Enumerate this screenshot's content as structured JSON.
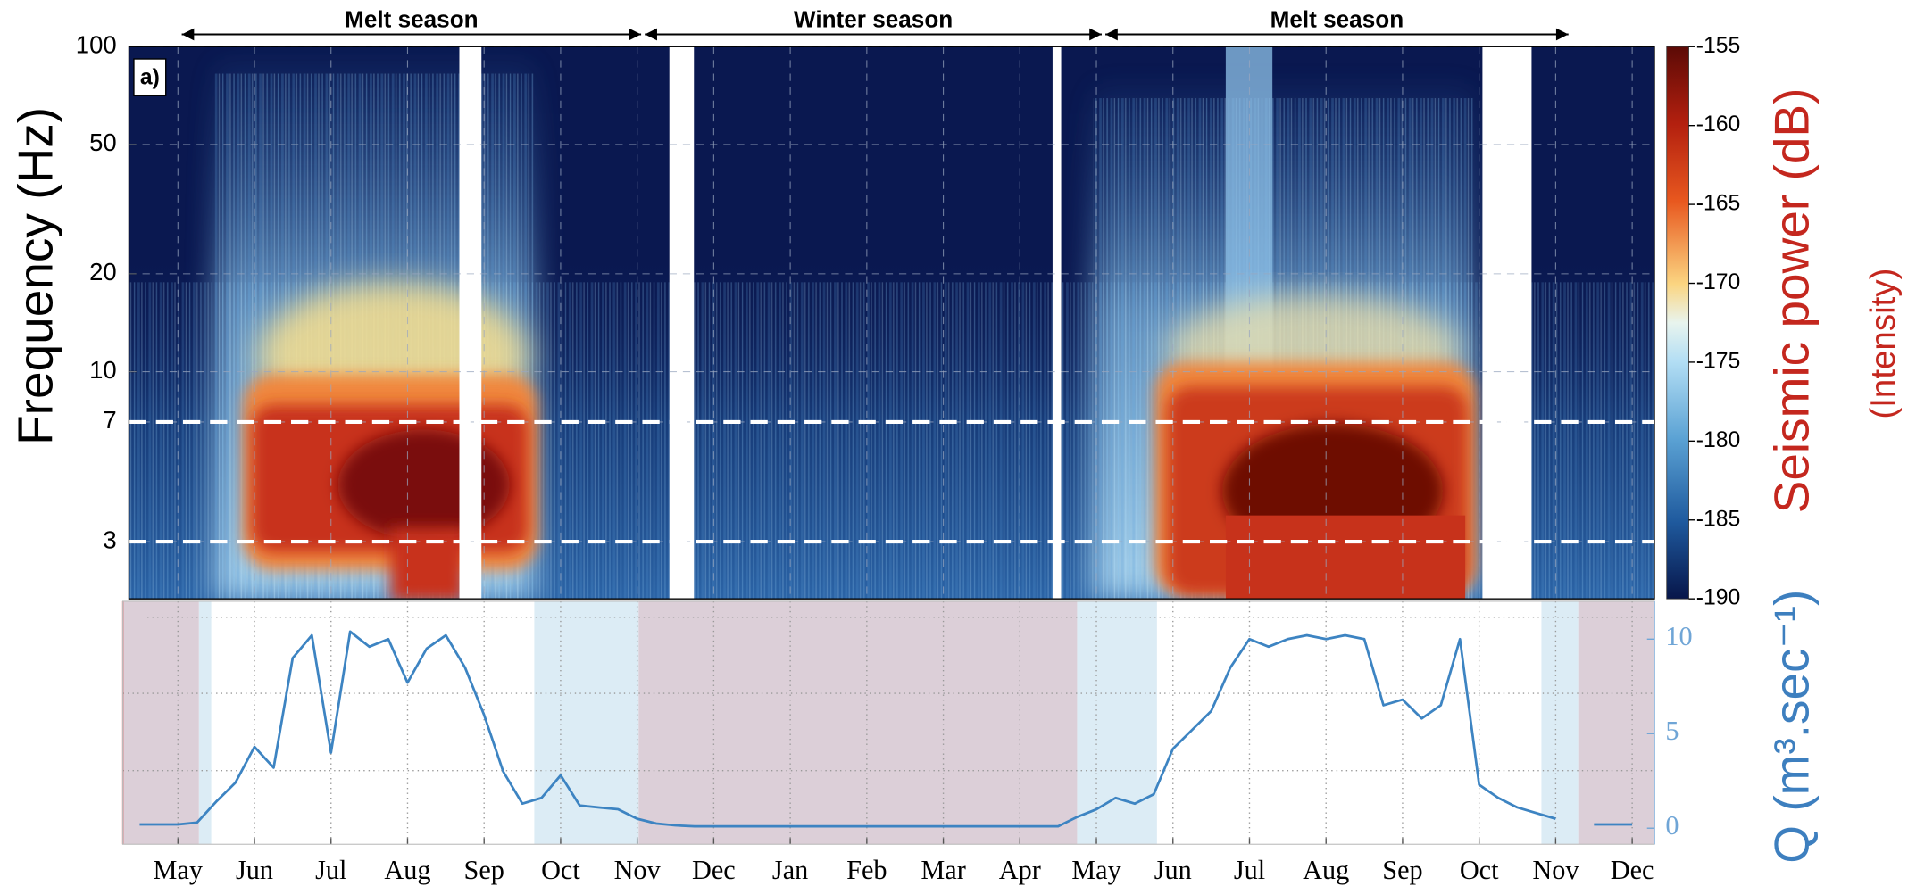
{
  "chart_data": [
    {
      "type": "spectrogram",
      "ylabel": "Frequency (Hz)",
      "panel_label": "a)",
      "seasons": [
        "Melt season",
        "Winter season",
        "Melt season"
      ],
      "ylim": [
        2,
        100
      ],
      "yscale": "log",
      "yticks": [
        100,
        50,
        20,
        10,
        7,
        3
      ],
      "marked_frequencies": [
        7,
        3
      ],
      "grid": true,
      "colorbar": {
        "label": "Seismic power (dB)",
        "sublabel": "(Intensity)",
        "lim": [
          -190,
          -155
        ],
        "ticks": [
          -155,
          -160,
          -165,
          -170,
          -175,
          -180,
          -185,
          -190
        ]
      }
    },
    {
      "type": "line",
      "ylabel": "Q  (m³.sec⁻¹)",
      "color": "#3d84c2",
      "xlim": [
        -0.72,
        19.29
      ],
      "xticks": [
        {
          "value": 0,
          "label": "May"
        },
        {
          "value": 1,
          "label": "Jun"
        },
        {
          "value": 2,
          "label": "Jul"
        },
        {
          "value": 3,
          "label": "Aug"
        },
        {
          "value": 4,
          "label": "Sep"
        },
        {
          "value": 5,
          "label": "Oct"
        },
        {
          "value": 6,
          "label": "Nov"
        },
        {
          "value": 7,
          "label": "Dec"
        },
        {
          "value": 8,
          "label": "Jan"
        },
        {
          "value": 9,
          "label": "Feb"
        },
        {
          "value": 10,
          "label": "Mar"
        },
        {
          "value": 11,
          "label": "Apr"
        },
        {
          "value": 12,
          "label": "May"
        },
        {
          "value": 13,
          "label": "Jun"
        },
        {
          "value": 14,
          "label": "Jul"
        },
        {
          "value": 15,
          "label": "Aug"
        },
        {
          "value": 16,
          "label": "Sep"
        },
        {
          "value": 17,
          "label": "Oct"
        },
        {
          "value": 18,
          "label": "Nov"
        },
        {
          "value": 19,
          "label": "Dec"
        }
      ],
      "ylim": [
        -0.85,
        12
      ],
      "yticks": [
        0,
        5,
        10
      ],
      "x": [
        -0.5,
        -0.25,
        0,
        0.25,
        0.5,
        0.75,
        1,
        1.25,
        1.5,
        1.75,
        2,
        2.25,
        2.5,
        2.75,
        3,
        3.25,
        3.5,
        3.75,
        4,
        4.25,
        4.5,
        4.75,
        5,
        5.25,
        5.5,
        5.75,
        6,
        6.25,
        6.5,
        6.75,
        7,
        7.25,
        7.5,
        7.75,
        8,
        8.25,
        8.5,
        8.75,
        9,
        9.25,
        9.5,
        9.75,
        10,
        10.25,
        10.5,
        10.75,
        11,
        11.25,
        11.5,
        11.75,
        12,
        12.25,
        12.5,
        12.75,
        13,
        13.25,
        13.5,
        13.75,
        14,
        14.25,
        14.5,
        14.75,
        15,
        15.25,
        15.5,
        15.75,
        16,
        16.25,
        16.5,
        16.75,
        17,
        17.25,
        17.5,
        17.75,
        18,
        18.25,
        18.5,
        18.75,
        19
      ],
      "values": [
        0.2,
        0.2,
        0.2,
        0.3,
        1.4,
        2.4,
        4.3,
        3.2,
        9.0,
        10.2,
        4.0,
        10.4,
        9.6,
        10.0,
        7.7,
        9.5,
        10.2,
        8.5,
        6.0,
        3.0,
        1.3,
        1.6,
        2.8,
        1.2,
        1.1,
        1.0,
        0.5,
        0.25,
        0.15,
        0.1,
        0.1,
        0.1,
        0.1,
        0.1,
        0.1,
        0.1,
        0.1,
        0.1,
        0.1,
        0.1,
        0.1,
        0.1,
        0.1,
        0.1,
        0.1,
        0.1,
        0.1,
        0.1,
        0.1,
        0.6,
        1.0,
        1.6,
        1.3,
        1.8,
        4.2,
        5.2,
        6.2,
        8.5,
        10.0,
        9.6,
        10.0,
        10.2,
        10.0,
        10.2,
        10.0,
        6.5,
        6.8,
        5.8,
        6.5,
        10.0,
        2.3,
        1.6,
        1.1,
        0.8,
        0.5,
        null,
        0.2,
        0.2,
        0.2
      ]
    }
  ]
}
